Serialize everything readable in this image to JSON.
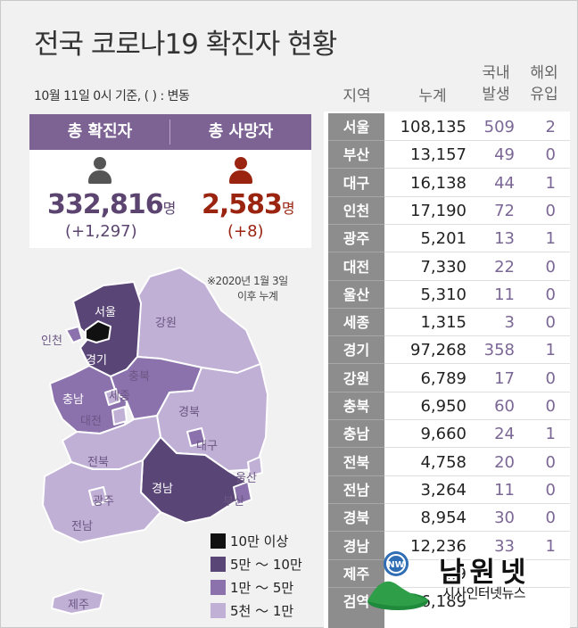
{
  "title": "전국 코로나19 확진자 현황",
  "basis": "10월 11일 0시 기준, ( ) : 변동",
  "summary": {
    "confirmed_label": "총 확진자",
    "confirmed_value": "332,816",
    "confirmed_delta": "(+1,297)",
    "deaths_label": "총 사망자",
    "deaths_value": "2,583",
    "deaths_delta": "(+8)",
    "unit": "명",
    "colors": {
      "header": "#7d6294",
      "confirmed": "#5b4470",
      "deaths": "#9a2410"
    }
  },
  "note_line1": "※2020년 1월 3일",
  "note_line2": "이후 누계",
  "map_labels": {
    "seoul": "서울",
    "incheon": "인천",
    "gyeonggi": "경기",
    "gangwon": "강원",
    "chungbuk": "충북",
    "chungnam": "충남",
    "sejong": "세종",
    "daejeon": "대전",
    "gyeongbuk": "경북",
    "daegu": "대구",
    "jeonbuk": "전북",
    "gwangju": "광주",
    "jeonnam": "전남",
    "gyeongnam": "경남",
    "ulsan": "울산",
    "busan": "부산",
    "jeju": "제주"
  },
  "legend": [
    {
      "label": "10만 이상",
      "color": "#111111"
    },
    {
      "label": "5만 ～ 10만",
      "color": "#5a4577"
    },
    {
      "label": "1만 ～ 5만",
      "color": "#8b72ad"
    },
    {
      "label": "5천 ～ 1만",
      "color": "#c1b0d6"
    }
  ],
  "table": {
    "col_region": "지역",
    "col_total": "누계",
    "col_domestic_1": "국내",
    "col_domestic_2": "발생",
    "col_overseas_1": "해외",
    "col_overseas_2": "유입",
    "rows": [
      {
        "region": "서울",
        "total": "108,135",
        "domestic": "509",
        "overseas": "2"
      },
      {
        "region": "부산",
        "total": "13,157",
        "domestic": "49",
        "overseas": "0"
      },
      {
        "region": "대구",
        "total": "16,138",
        "domestic": "44",
        "overseas": "1"
      },
      {
        "region": "인천",
        "total": "17,190",
        "domestic": "72",
        "overseas": "0"
      },
      {
        "region": "광주",
        "total": "5,201",
        "domestic": "13",
        "overseas": "1"
      },
      {
        "region": "대전",
        "total": "7,330",
        "domestic": "22",
        "overseas": "0"
      },
      {
        "region": "울산",
        "total": "5,310",
        "domestic": "11",
        "overseas": "0"
      },
      {
        "region": "세종",
        "total": "1,315",
        "domestic": "3",
        "overseas": "0"
      },
      {
        "region": "경기",
        "total": "97,268",
        "domestic": "358",
        "overseas": "1"
      },
      {
        "region": "강원",
        "total": "6,789",
        "domestic": "17",
        "overseas": "0"
      },
      {
        "region": "충북",
        "total": "6,950",
        "domestic": "60",
        "overseas": "0"
      },
      {
        "region": "충남",
        "total": "9,660",
        "domestic": "24",
        "overseas": "1"
      },
      {
        "region": "전북",
        "total": "4,758",
        "domestic": "20",
        "overseas": "0"
      },
      {
        "region": "전남",
        "total": "3,264",
        "domestic": "11",
        "overseas": "0"
      },
      {
        "region": "경북",
        "total": "8,954",
        "domestic": "30",
        "overseas": "0"
      },
      {
        "region": "경남",
        "total": "12,236",
        "domestic": "33",
        "overseas": "1"
      },
      {
        "region": "제주",
        "total": "2,9",
        "domestic": "",
        "overseas": ""
      },
      {
        "region": "검역",
        "total": "6,189",
        "domestic": "",
        "overseas": ""
      }
    ]
  },
  "watermark": {
    "name": "남원넷",
    "tagline": "시사인터넷뉴스",
    "badge": "NW"
  }
}
